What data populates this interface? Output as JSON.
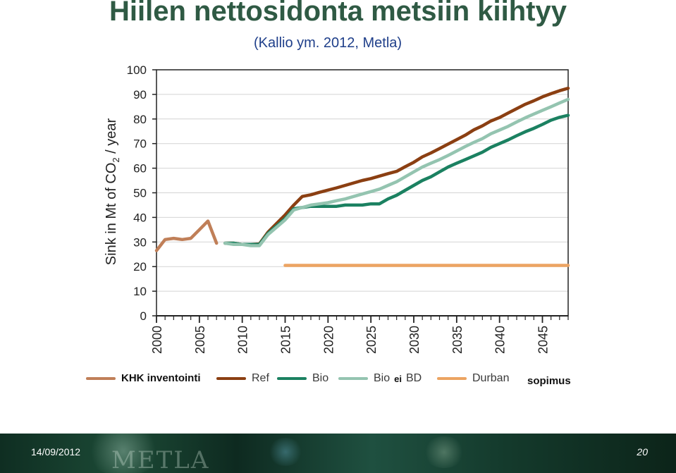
{
  "page": {
    "title": "Hiilen nettosidonta metsiin kiihtyy",
    "subtitle": "(Kallio ym. 2012, Metla)"
  },
  "chart_data": {
    "type": "line",
    "ylabel_main": "Sink in Mt of CO",
    "ylabel_sub": "2",
    "ylabel_tail": " / year",
    "xlabel": "",
    "ylim": [
      0,
      100
    ],
    "xlim": [
      2000,
      2048
    ],
    "yticks": [
      "0",
      "10",
      "20",
      "30",
      "40",
      "50",
      "60",
      "70",
      "80",
      "90",
      "100"
    ],
    "xticks": [
      "2000",
      "2005",
      "2010",
      "2015",
      "2020",
      "2025",
      "2030",
      "2035",
      "2040",
      "2045"
    ],
    "grid": true,
    "series": [
      {
        "name": "KHK inventointi",
        "color": "#c07f58",
        "x": [
          2000,
          2001,
          2002,
          2003,
          2004,
          2005,
          2006,
          2007
        ],
        "y": [
          26.5,
          31,
          31.5,
          31,
          31.5,
          35,
          38.5,
          29.5
        ]
      },
      {
        "name": "Ref",
        "color": "#8b3f12",
        "x": [
          2008,
          2009,
          2010,
          2011,
          2012,
          2013,
          2014,
          2015,
          2016,
          2017,
          2018,
          2019,
          2020,
          2021,
          2022,
          2023,
          2024,
          2025,
          2026,
          2027,
          2028,
          2029,
          2030,
          2031,
          2032,
          2033,
          2034,
          2035,
          2036,
          2037,
          2038,
          2039,
          2040,
          2041,
          2042,
          2043,
          2044,
          2045,
          2046,
          2047,
          2048
        ],
        "y": [
          29.5,
          29.5,
          29,
          29,
          29.2,
          34,
          37.5,
          41,
          45,
          48.5,
          49.2,
          50.2,
          51.1,
          52,
          53,
          54,
          55,
          55.8,
          56.8,
          57.8,
          58.7,
          60.6,
          62.4,
          64.6,
          66.2,
          68,
          69.8,
          71.6,
          73.4,
          75.6,
          77.2,
          79.2,
          80.6,
          82.4,
          84.2,
          86,
          87.4,
          89,
          90.3,
          91.5,
          92.5
        ]
      },
      {
        "name": "Bio",
        "color": "#1b8161",
        "x": [
          2008,
          2009,
          2010,
          2011,
          2012,
          2013,
          2014,
          2015,
          2016,
          2017,
          2018,
          2019,
          2020,
          2021,
          2022,
          2023,
          2024,
          2025,
          2026,
          2027,
          2028,
          2029,
          2030,
          2031,
          2032,
          2033,
          2034,
          2035,
          2036,
          2037,
          2038,
          2039,
          2040,
          2041,
          2042,
          2043,
          2044,
          2045,
          2046,
          2047,
          2048
        ],
        "y": [
          29.5,
          29.5,
          29,
          29,
          29,
          33.5,
          36.5,
          39.5,
          43.5,
          44,
          44.5,
          44.5,
          44.5,
          44.5,
          45,
          45,
          45,
          45.5,
          45.5,
          47.5,
          49,
          51,
          53,
          55,
          56.5,
          58.5,
          60.5,
          62,
          63.5,
          65,
          66.5,
          68.5,
          70,
          71.5,
          73.2,
          74.8,
          76.2,
          77.8,
          79.5,
          80.7,
          81.5
        ]
      },
      {
        "name": "Bio ei BD",
        "color": "#94c4b0",
        "x": [
          2008,
          2009,
          2010,
          2011,
          2012,
          2013,
          2014,
          2015,
          2016,
          2017,
          2018,
          2019,
          2020,
          2021,
          2022,
          2023,
          2024,
          2025,
          2026,
          2027,
          2028,
          2029,
          2030,
          2031,
          2032,
          2033,
          2034,
          2035,
          2036,
          2037,
          2038,
          2039,
          2040,
          2041,
          2042,
          2043,
          2044,
          2045,
          2046,
          2047,
          2048
        ],
        "y": [
          29.5,
          29,
          29,
          28.5,
          28.5,
          33,
          36,
          39,
          43,
          44,
          45,
          45.5,
          46,
          46.8,
          47.5,
          48.5,
          49.5,
          50.5,
          51.5,
          53,
          54.5,
          56.5,
          58.5,
          60.5,
          62,
          63.5,
          65.2,
          67,
          68.8,
          70.5,
          72,
          74,
          75.5,
          77,
          78.8,
          80.5,
          82,
          83.5,
          85,
          86.5,
          88
        ]
      },
      {
        "name": "Durban",
        "color": "#eca462",
        "x": [
          2015,
          2048
        ],
        "y": [
          20.5,
          20.5
        ]
      }
    ]
  },
  "legend": {
    "khk": "KHK inventointi",
    "ref": "Ref",
    "bio": "Bio",
    "bio_ei_bd_a": "Bio",
    "bio_ei_bd_b": "ei",
    "bio_ei_bd_c": "BD",
    "durban": "Durban",
    "durban_note": "sopimus"
  },
  "footer": {
    "date": "14/09/2012",
    "logo": "METLA",
    "page_number": "20"
  }
}
